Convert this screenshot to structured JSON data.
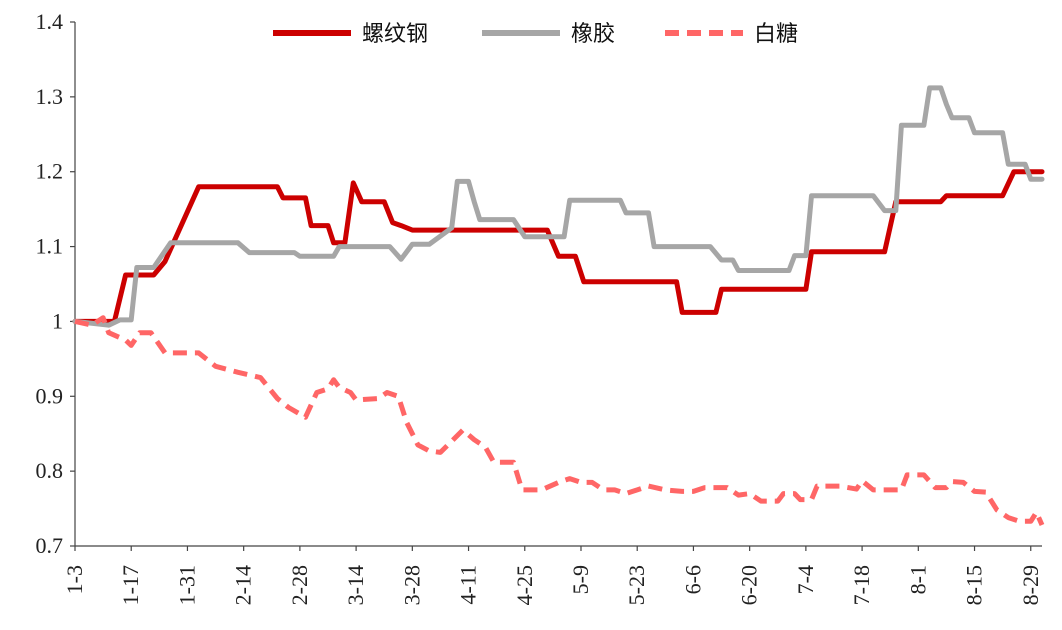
{
  "chart_data": {
    "type": "line",
    "title": "",
    "xlabel": "",
    "ylabel": "",
    "ylim": [
      0.7,
      1.4
    ],
    "yticks": [
      "0.7",
      "0.8",
      "0.9",
      "1",
      "1.1",
      "1.2",
      "1.3",
      "1.4"
    ],
    "xticks": [
      "1-3",
      "1-17",
      "1-31",
      "2-14",
      "2-28",
      "3-14",
      "3-28",
      "4-11",
      "4-25",
      "5-9",
      "5-23",
      "6-6",
      "6-20",
      "7-4",
      "7-18",
      "8-1",
      "8-15",
      "8-29"
    ],
    "grid": false,
    "legend_position": "top",
    "series": [
      {
        "name": "螺纹钢",
        "color": "#cc0000",
        "dash": "solid",
        "points": [
          [
            0,
            1.0
          ],
          [
            0.7,
            1.0
          ],
          [
            0.9,
            1.062
          ],
          [
            1.4,
            1.062
          ],
          [
            1.6,
            1.08
          ],
          [
            2.2,
            1.18
          ],
          [
            3.6,
            1.18
          ],
          [
            3.7,
            1.165
          ],
          [
            4.1,
            1.165
          ],
          [
            4.2,
            1.128
          ],
          [
            4.5,
            1.128
          ],
          [
            4.6,
            1.105
          ],
          [
            4.8,
            1.105
          ],
          [
            4.95,
            1.185
          ],
          [
            5.1,
            1.16
          ],
          [
            5.5,
            1.16
          ],
          [
            5.65,
            1.132
          ],
          [
            5.8,
            1.128
          ],
          [
            6.0,
            1.122
          ],
          [
            8.4,
            1.122
          ],
          [
            8.6,
            1.087
          ],
          [
            8.9,
            1.087
          ],
          [
            9.05,
            1.053
          ],
          [
            10.7,
            1.053
          ],
          [
            10.8,
            1.012
          ],
          [
            11.4,
            1.012
          ],
          [
            11.5,
            1.043
          ],
          [
            13.0,
            1.043
          ],
          [
            13.1,
            1.093
          ],
          [
            14.4,
            1.093
          ],
          [
            14.6,
            1.16
          ],
          [
            15.4,
            1.16
          ],
          [
            15.5,
            1.168
          ],
          [
            16.5,
            1.168
          ],
          [
            16.7,
            1.2
          ],
          [
            17.2,
            1.2
          ]
        ]
      },
      {
        "name": "橡胶",
        "color": "#a6a6a6",
        "dash": "solid",
        "points": [
          [
            0,
            1.0
          ],
          [
            0.6,
            0.995
          ],
          [
            0.8,
            1.002
          ],
          [
            1.0,
            1.002
          ],
          [
            1.1,
            1.072
          ],
          [
            1.4,
            1.072
          ],
          [
            1.7,
            1.105
          ],
          [
            2.9,
            1.105
          ],
          [
            3.1,
            1.092
          ],
          [
            3.9,
            1.092
          ],
          [
            4.0,
            1.087
          ],
          [
            4.6,
            1.087
          ],
          [
            4.7,
            1.1
          ],
          [
            5.6,
            1.1
          ],
          [
            5.8,
            1.083
          ],
          [
            6.0,
            1.103
          ],
          [
            6.3,
            1.103
          ],
          [
            6.7,
            1.125
          ],
          [
            6.8,
            1.187
          ],
          [
            7.0,
            1.187
          ],
          [
            7.1,
            1.16
          ],
          [
            7.2,
            1.136
          ],
          [
            7.8,
            1.136
          ],
          [
            8.0,
            1.113
          ],
          [
            8.7,
            1.113
          ],
          [
            8.8,
            1.162
          ],
          [
            9.7,
            1.162
          ],
          [
            9.8,
            1.145
          ],
          [
            10.2,
            1.145
          ],
          [
            10.3,
            1.1
          ],
          [
            11.3,
            1.1
          ],
          [
            11.5,
            1.082
          ],
          [
            11.7,
            1.082
          ],
          [
            11.8,
            1.068
          ],
          [
            12.7,
            1.068
          ],
          [
            12.8,
            1.088
          ],
          [
            13.0,
            1.088
          ],
          [
            13.1,
            1.168
          ],
          [
            14.2,
            1.168
          ],
          [
            14.4,
            1.148
          ],
          [
            14.6,
            1.148
          ],
          [
            14.7,
            1.262
          ],
          [
            15.1,
            1.262
          ],
          [
            15.2,
            1.312
          ],
          [
            15.4,
            1.312
          ],
          [
            15.5,
            1.29
          ],
          [
            15.6,
            1.272
          ],
          [
            15.9,
            1.272
          ],
          [
            16.0,
            1.252
          ],
          [
            16.5,
            1.252
          ],
          [
            16.6,
            1.21
          ],
          [
            16.9,
            1.21
          ],
          [
            17.0,
            1.19
          ],
          [
            17.2,
            1.19
          ]
        ]
      },
      {
        "name": "白糖",
        "color": "#ff6666",
        "dash": "dashed",
        "points": [
          [
            0,
            1.0
          ],
          [
            0.3,
            0.995
          ],
          [
            0.5,
            1.005
          ],
          [
            0.6,
            0.985
          ],
          [
            0.9,
            0.975
          ],
          [
            1.0,
            0.968
          ],
          [
            1.15,
            0.985
          ],
          [
            1.35,
            0.985
          ],
          [
            1.6,
            0.958
          ],
          [
            2.2,
            0.958
          ],
          [
            2.5,
            0.94
          ],
          [
            2.9,
            0.932
          ],
          [
            3.3,
            0.925
          ],
          [
            3.6,
            0.897
          ],
          [
            3.8,
            0.885
          ],
          [
            4.1,
            0.872
          ],
          [
            4.3,
            0.905
          ],
          [
            4.5,
            0.91
          ],
          [
            4.6,
            0.922
          ],
          [
            4.7,
            0.912
          ],
          [
            4.9,
            0.905
          ],
          [
            5.0,
            0.895
          ],
          [
            5.4,
            0.897
          ],
          [
            5.55,
            0.905
          ],
          [
            5.75,
            0.9
          ],
          [
            5.9,
            0.865
          ],
          [
            6.1,
            0.835
          ],
          [
            6.3,
            0.827
          ],
          [
            6.5,
            0.825
          ],
          [
            6.7,
            0.84
          ],
          [
            6.9,
            0.855
          ],
          [
            7.1,
            0.842
          ],
          [
            7.3,
            0.832
          ],
          [
            7.45,
            0.812
          ],
          [
            7.8,
            0.812
          ],
          [
            7.95,
            0.775
          ],
          [
            8.3,
            0.775
          ],
          [
            8.6,
            0.785
          ],
          [
            8.8,
            0.79
          ],
          [
            9.0,
            0.785
          ],
          [
            9.2,
            0.785
          ],
          [
            9.4,
            0.775
          ],
          [
            9.6,
            0.775
          ],
          [
            9.8,
            0.77
          ],
          [
            10.2,
            0.78
          ],
          [
            10.5,
            0.775
          ],
          [
            10.8,
            0.773
          ],
          [
            11.0,
            0.773
          ],
          [
            11.2,
            0.778
          ],
          [
            11.6,
            0.778
          ],
          [
            11.8,
            0.768
          ],
          [
            12.0,
            0.77
          ],
          [
            12.2,
            0.76
          ],
          [
            12.5,
            0.76
          ],
          [
            12.6,
            0.77
          ],
          [
            12.8,
            0.77
          ],
          [
            12.9,
            0.762
          ],
          [
            13.1,
            0.762
          ],
          [
            13.2,
            0.78
          ],
          [
            13.6,
            0.78
          ],
          [
            13.9,
            0.776
          ],
          [
            14.0,
            0.787
          ],
          [
            14.2,
            0.775
          ],
          [
            14.5,
            0.775
          ],
          [
            14.7,
            0.775
          ],
          [
            14.8,
            0.795
          ],
          [
            15.1,
            0.795
          ],
          [
            15.3,
            0.778
          ],
          [
            15.5,
            0.778
          ],
          [
            15.6,
            0.786
          ],
          [
            15.8,
            0.785
          ],
          [
            16.0,
            0.773
          ],
          [
            16.2,
            0.772
          ],
          [
            16.4,
            0.748
          ],
          [
            16.6,
            0.738
          ],
          [
            16.8,
            0.733
          ],
          [
            17.0,
            0.733
          ],
          [
            17.1,
            0.745
          ],
          [
            17.2,
            0.728
          ]
        ]
      }
    ]
  }
}
